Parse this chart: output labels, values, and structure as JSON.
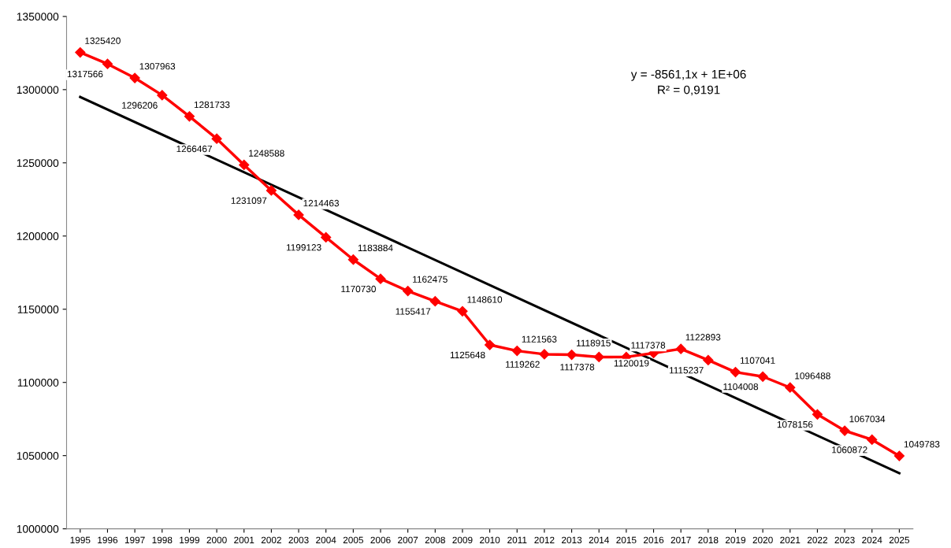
{
  "chart_data": {
    "type": "line",
    "categories": [
      "1995",
      "1996",
      "1997",
      "1998",
      "1999",
      "2000",
      "2001",
      "2002",
      "2003",
      "2004",
      "2005",
      "2006",
      "2007",
      "2008",
      "2009",
      "2010",
      "2011",
      "2012",
      "2013",
      "2014",
      "2015",
      "2016",
      "2017",
      "2018",
      "2019",
      "2020",
      "2021",
      "2022",
      "2023",
      "2024",
      "2025"
    ],
    "series": [
      {
        "color": "#ff0000",
        "marker": "diamond",
        "data_labels": true,
        "values": [
          1325420,
          1317566,
          1307963,
          1296206,
          1281733,
          1266467,
          1248588,
          1231097,
          1214463,
          1199123,
          1183884,
          1170730,
          1162475,
          1155417,
          1148610,
          1125648,
          1121563,
          1119262,
          1118915,
          1117378,
          1117378,
          1120019,
          1122893,
          1115237,
          1107041,
          1104008,
          1096488,
          1078156,
          1067034,
          1060872,
          1049783
        ]
      },
      {
        "type": "line",
        "color": "#000000",
        "marker": "none",
        "values": [
          1295000,
          null,
          null,
          null,
          null,
          null,
          null,
          null,
          null,
          null,
          null,
          null,
          null,
          null,
          null,
          null,
          null,
          null,
          null,
          null,
          null,
          null,
          null,
          null,
          null,
          null,
          null,
          null,
          null,
          null,
          1038000
        ]
      }
    ],
    "ylim": [
      1000000,
      1350000
    ],
    "yticks": [
      1000000,
      1050000,
      1100000,
      1150000,
      1200000,
      1250000,
      1300000,
      1350000
    ],
    "grid": false,
    "legend": false,
    "annotations": [
      "y = -8561,1x + 1E+06\nR² = 0,9191"
    ]
  }
}
